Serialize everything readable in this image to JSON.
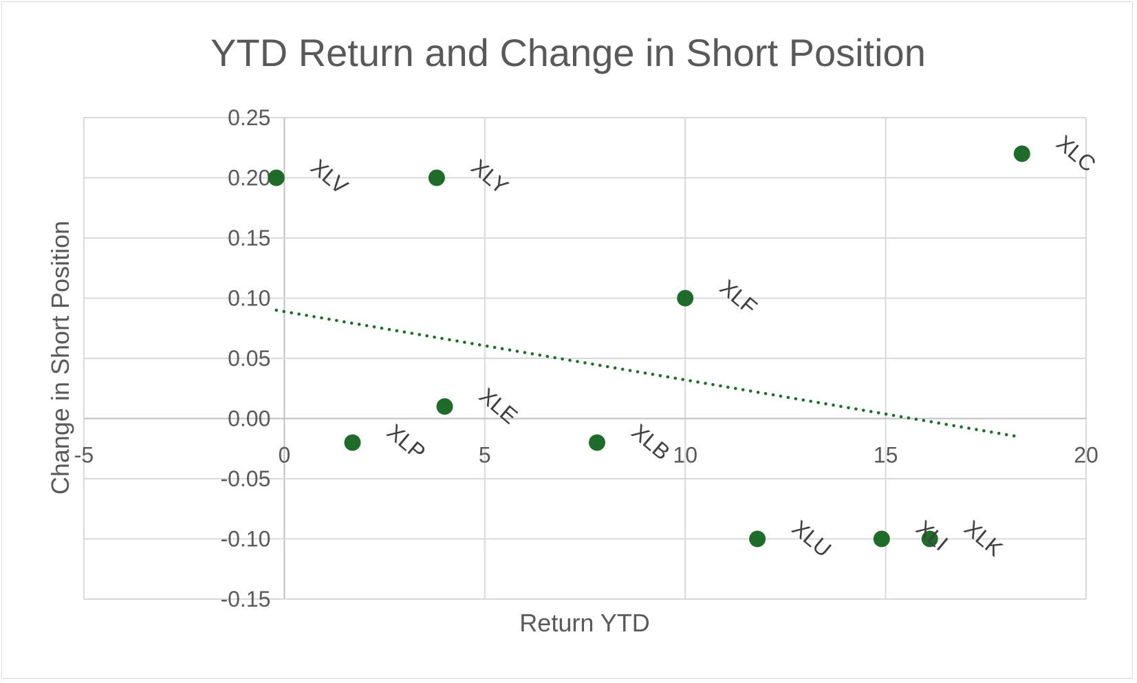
{
  "chart_data": {
    "type": "scatter",
    "title": "YTD Return and Change in Short Position",
    "xlabel": "Return YTD",
    "ylabel": "Change in Short Position",
    "xlim": [
      -5,
      20
    ],
    "ylim": [
      -0.15,
      0.25
    ],
    "x_ticks": [
      -5,
      0,
      5,
      10,
      15,
      20
    ],
    "y_ticks": [
      "-0.15",
      "-0.10",
      "-0.05",
      "0.00",
      "0.05",
      "0.10",
      "0.15",
      "0.20",
      "0.25"
    ],
    "grid": true,
    "legend": "none",
    "marker_color": "#1e6b2a",
    "trendline": {
      "type": "linear",
      "style": "dotted",
      "color": "#1e6b2a",
      "x": [
        -0.2,
        18.3
      ],
      "y": [
        0.09,
        -0.015
      ]
    },
    "points": [
      {
        "label": "XLV",
        "x": -0.2,
        "y": 0.2
      },
      {
        "label": "XLY",
        "x": 3.8,
        "y": 0.2
      },
      {
        "label": "XLC",
        "x": 18.4,
        "y": 0.22
      },
      {
        "label": "XLF",
        "x": 10.0,
        "y": 0.1
      },
      {
        "label": "XLE",
        "x": 4.0,
        "y": 0.01
      },
      {
        "label": "XLP",
        "x": 1.7,
        "y": -0.02
      },
      {
        "label": "XLB",
        "x": 7.8,
        "y": -0.02
      },
      {
        "label": "XLU",
        "x": 11.8,
        "y": -0.1
      },
      {
        "label": "XLI",
        "x": 14.9,
        "y": -0.1
      },
      {
        "label": "XLK",
        "x": 16.1,
        "y": -0.1
      }
    ]
  }
}
